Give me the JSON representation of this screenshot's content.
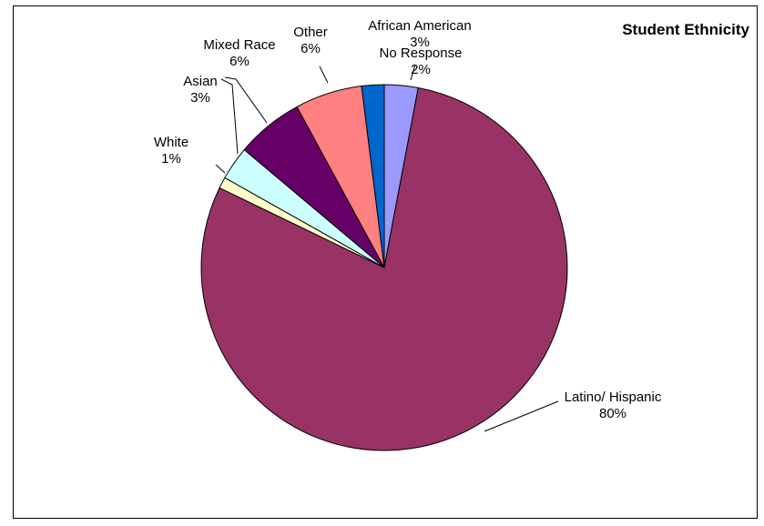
{
  "chart_data": {
    "type": "pie",
    "title": "Student Ethnicity",
    "slices": [
      {
        "label": "African American",
        "value": 3,
        "display": "3%",
        "color": "#9999FF"
      },
      {
        "label": "Latino/ Hispanic",
        "value": 80,
        "display": "80%",
        "color": "#993366"
      },
      {
        "label": "White",
        "value": 1,
        "display": "1%",
        "color": "#FFFFCC"
      },
      {
        "label": "Asian",
        "value": 3,
        "display": "3%",
        "color": "#CCFFFF"
      },
      {
        "label": "Mixed Race",
        "value": 6,
        "display": "6%",
        "color": "#660066"
      },
      {
        "label": "Other",
        "value": 6,
        "display": "6%",
        "color": "#FF8080"
      },
      {
        "label": "No Response",
        "value": 2,
        "display": "2%",
        "color": "#0066CC"
      }
    ],
    "legend": "none"
  }
}
